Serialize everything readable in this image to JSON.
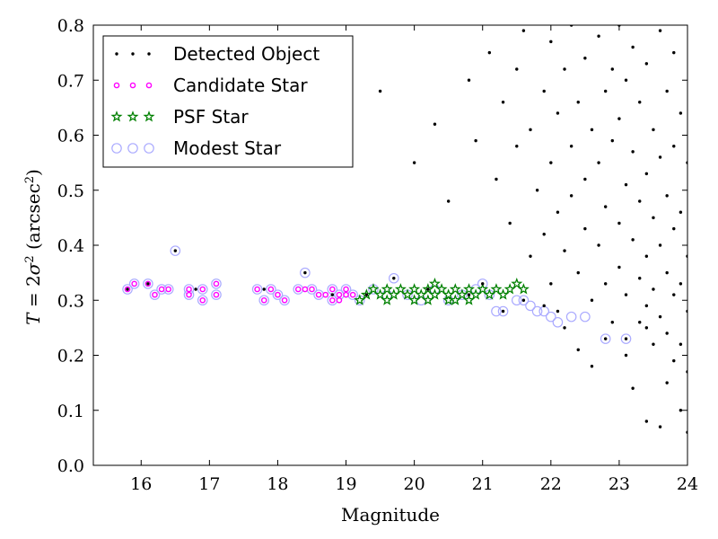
{
  "chart_data": {
    "type": "scatter",
    "xlabel": "Magnitude",
    "ylabel": "T = 2σ² (arcsec²)",
    "xlim": [
      15.3,
      24
    ],
    "ylim": [
      0.0,
      0.8
    ],
    "xticks": [
      "16",
      "17",
      "18",
      "19",
      "20",
      "21",
      "22",
      "23",
      "24"
    ],
    "yticks": [
      "0.0",
      "0.1",
      "0.2",
      "0.3",
      "0.4",
      "0.5",
      "0.6",
      "0.7",
      "0.8"
    ],
    "grid": false,
    "legend_position": "top-left",
    "series": [
      {
        "name": "Detected Object",
        "marker": "dot",
        "color": "#000000",
        "points": [
          [
            16.5,
            0.39
          ],
          [
            18.4,
            0.35
          ],
          [
            19.7,
            0.34
          ],
          [
            21.0,
            0.33
          ],
          [
            15.8,
            0.32
          ],
          [
            16.1,
            0.33
          ],
          [
            16.8,
            0.32
          ],
          [
            17.8,
            0.32
          ],
          [
            18.8,
            0.31
          ],
          [
            19.3,
            0.31
          ],
          [
            20.2,
            0.32
          ],
          [
            20.8,
            0.31
          ],
          [
            21.3,
            0.28
          ],
          [
            21.6,
            0.3
          ],
          [
            21.9,
            0.29
          ],
          [
            22.1,
            0.28
          ],
          [
            22.8,
            0.23
          ],
          [
            23.1,
            0.23
          ],
          [
            23.4,
            0.25
          ],
          [
            19.5,
            0.68
          ],
          [
            20.0,
            0.55
          ],
          [
            20.3,
            0.62
          ],
          [
            20.5,
            0.48
          ],
          [
            20.8,
            0.7
          ],
          [
            20.9,
            0.59
          ],
          [
            21.1,
            0.75
          ],
          [
            21.2,
            0.52
          ],
          [
            21.3,
            0.66
          ],
          [
            21.4,
            0.44
          ],
          [
            21.5,
            0.72
          ],
          [
            21.5,
            0.58
          ],
          [
            21.6,
            0.79
          ],
          [
            21.7,
            0.61
          ],
          [
            21.7,
            0.38
          ],
          [
            21.8,
            0.5
          ],
          [
            21.9,
            0.68
          ],
          [
            21.9,
            0.42
          ],
          [
            22.0,
            0.77
          ],
          [
            22.0,
            0.55
          ],
          [
            22.0,
            0.33
          ],
          [
            22.1,
            0.64
          ],
          [
            22.1,
            0.46
          ],
          [
            22.2,
            0.72
          ],
          [
            22.2,
            0.39
          ],
          [
            22.2,
            0.25
          ],
          [
            22.3,
            0.58
          ],
          [
            22.3,
            0.49
          ],
          [
            22.3,
            0.8
          ],
          [
            22.4,
            0.66
          ],
          [
            22.4,
            0.35
          ],
          [
            22.4,
            0.21
          ],
          [
            22.5,
            0.74
          ],
          [
            22.5,
            0.52
          ],
          [
            22.5,
            0.43
          ],
          [
            22.6,
            0.61
          ],
          [
            22.6,
            0.3
          ],
          [
            22.6,
            0.18
          ],
          [
            22.7,
            0.78
          ],
          [
            22.7,
            0.55
          ],
          [
            22.7,
            0.4
          ],
          [
            22.8,
            0.68
          ],
          [
            22.8,
            0.47
          ],
          [
            22.8,
            0.33
          ],
          [
            22.9,
            0.72
          ],
          [
            22.9,
            0.59
          ],
          [
            22.9,
            0.26
          ],
          [
            23.0,
            0.8
          ],
          [
            23.0,
            0.63
          ],
          [
            23.0,
            0.44
          ],
          [
            23.0,
            0.36
          ],
          [
            23.1,
            0.7
          ],
          [
            23.1,
            0.51
          ],
          [
            23.1,
            0.31
          ],
          [
            23.1,
            0.2
          ],
          [
            23.2,
            0.76
          ],
          [
            23.2,
            0.57
          ],
          [
            23.2,
            0.41
          ],
          [
            23.2,
            0.14
          ],
          [
            23.3,
            0.66
          ],
          [
            23.3,
            0.48
          ],
          [
            23.3,
            0.34
          ],
          [
            23.3,
            0.26
          ],
          [
            23.4,
            0.73
          ],
          [
            23.4,
            0.53
          ],
          [
            23.4,
            0.38
          ],
          [
            23.4,
            0.29
          ],
          [
            23.4,
            0.08
          ],
          [
            23.5,
            0.61
          ],
          [
            23.5,
            0.45
          ],
          [
            23.5,
            0.32
          ],
          [
            23.5,
            0.22
          ],
          [
            23.6,
            0.79
          ],
          [
            23.6,
            0.56
          ],
          [
            23.6,
            0.4
          ],
          [
            23.6,
            0.27
          ],
          [
            23.6,
            0.07
          ],
          [
            23.7,
            0.68
          ],
          [
            23.7,
            0.49
          ],
          [
            23.7,
            0.35
          ],
          [
            23.7,
            0.24
          ],
          [
            23.7,
            0.15
          ],
          [
            23.8,
            0.75
          ],
          [
            23.8,
            0.58
          ],
          [
            23.8,
            0.43
          ],
          [
            23.8,
            0.31
          ],
          [
            23.8,
            0.19
          ],
          [
            23.9,
            0.64
          ],
          [
            23.9,
            0.46
          ],
          [
            23.9,
            0.33
          ],
          [
            23.9,
            0.22
          ],
          [
            23.9,
            0.1
          ],
          [
            24.0,
            0.55
          ],
          [
            24.0,
            0.38
          ],
          [
            24.0,
            0.28
          ],
          [
            24.0,
            0.17
          ],
          [
            24.0,
            0.06
          ]
        ]
      },
      {
        "name": "Candidate Star",
        "marker": "circle",
        "color": "#ff00ff",
        "points": [
          [
            15.8,
            0.32
          ],
          [
            15.9,
            0.33
          ],
          [
            16.1,
            0.33
          ],
          [
            16.2,
            0.31
          ],
          [
            16.3,
            0.32
          ],
          [
            16.4,
            0.32
          ],
          [
            16.7,
            0.32
          ],
          [
            16.7,
            0.31
          ],
          [
            16.9,
            0.32
          ],
          [
            16.9,
            0.3
          ],
          [
            17.1,
            0.33
          ],
          [
            17.1,
            0.31
          ],
          [
            17.7,
            0.32
          ],
          [
            17.8,
            0.3
          ],
          [
            17.9,
            0.32
          ],
          [
            18.0,
            0.31
          ],
          [
            18.1,
            0.3
          ],
          [
            18.3,
            0.32
          ],
          [
            18.4,
            0.32
          ],
          [
            18.5,
            0.32
          ],
          [
            18.6,
            0.31
          ],
          [
            18.7,
            0.31
          ],
          [
            18.8,
            0.32
          ],
          [
            18.8,
            0.3
          ],
          [
            18.9,
            0.31
          ],
          [
            18.9,
            0.3
          ],
          [
            19.0,
            0.32
          ],
          [
            19.0,
            0.31
          ],
          [
            19.1,
            0.31
          ]
        ]
      },
      {
        "name": "PSF Star",
        "marker": "star",
        "color": "#008000",
        "points": [
          [
            19.2,
            0.3
          ],
          [
            19.3,
            0.31
          ],
          [
            19.4,
            0.32
          ],
          [
            19.5,
            0.31
          ],
          [
            19.6,
            0.3
          ],
          [
            19.6,
            0.32
          ],
          [
            19.7,
            0.31
          ],
          [
            19.8,
            0.32
          ],
          [
            19.9,
            0.31
          ],
          [
            20.0,
            0.32
          ],
          [
            20.0,
            0.3
          ],
          [
            20.1,
            0.31
          ],
          [
            20.2,
            0.32
          ],
          [
            20.2,
            0.3
          ],
          [
            20.3,
            0.31
          ],
          [
            20.3,
            0.33
          ],
          [
            20.4,
            0.32
          ],
          [
            20.5,
            0.3
          ],
          [
            20.5,
            0.31
          ],
          [
            20.6,
            0.32
          ],
          [
            20.6,
            0.3
          ],
          [
            20.7,
            0.31
          ],
          [
            20.8,
            0.32
          ],
          [
            20.8,
            0.3
          ],
          [
            20.9,
            0.31
          ],
          [
            21.0,
            0.32
          ],
          [
            21.1,
            0.31
          ],
          [
            21.2,
            0.32
          ],
          [
            21.3,
            0.31
          ],
          [
            21.4,
            0.32
          ],
          [
            21.5,
            0.33
          ],
          [
            21.6,
            0.32
          ]
        ]
      },
      {
        "name": "Modest Star",
        "marker": "open-circle",
        "color": "#aaaaff",
        "points": [
          [
            15.8,
            0.32
          ],
          [
            15.9,
            0.33
          ],
          [
            16.1,
            0.33
          ],
          [
            16.2,
            0.31
          ],
          [
            16.3,
            0.32
          ],
          [
            16.4,
            0.32
          ],
          [
            16.5,
            0.39
          ],
          [
            16.7,
            0.32
          ],
          [
            16.7,
            0.31
          ],
          [
            16.9,
            0.32
          ],
          [
            16.9,
            0.3
          ],
          [
            17.1,
            0.33
          ],
          [
            17.1,
            0.31
          ],
          [
            17.7,
            0.32
          ],
          [
            17.8,
            0.3
          ],
          [
            17.9,
            0.32
          ],
          [
            18.0,
            0.31
          ],
          [
            18.1,
            0.3
          ],
          [
            18.3,
            0.32
          ],
          [
            18.4,
            0.35
          ],
          [
            18.5,
            0.32
          ],
          [
            18.6,
            0.31
          ],
          [
            18.8,
            0.32
          ],
          [
            18.8,
            0.3
          ],
          [
            18.9,
            0.31
          ],
          [
            19.0,
            0.32
          ],
          [
            19.1,
            0.31
          ],
          [
            19.2,
            0.3
          ],
          [
            19.4,
            0.32
          ],
          [
            19.6,
            0.31
          ],
          [
            19.7,
            0.34
          ],
          [
            19.9,
            0.31
          ],
          [
            20.1,
            0.3
          ],
          [
            20.3,
            0.32
          ],
          [
            20.5,
            0.3
          ],
          [
            20.7,
            0.31
          ],
          [
            20.9,
            0.32
          ],
          [
            21.0,
            0.33
          ],
          [
            21.1,
            0.31
          ],
          [
            21.2,
            0.28
          ],
          [
            21.3,
            0.28
          ],
          [
            21.5,
            0.3
          ],
          [
            21.6,
            0.3
          ],
          [
            21.7,
            0.29
          ],
          [
            21.8,
            0.28
          ],
          [
            21.9,
            0.28
          ],
          [
            22.0,
            0.27
          ],
          [
            22.1,
            0.26
          ],
          [
            22.3,
            0.27
          ],
          [
            22.5,
            0.27
          ],
          [
            22.8,
            0.23
          ],
          [
            23.1,
            0.23
          ]
        ]
      }
    ]
  }
}
